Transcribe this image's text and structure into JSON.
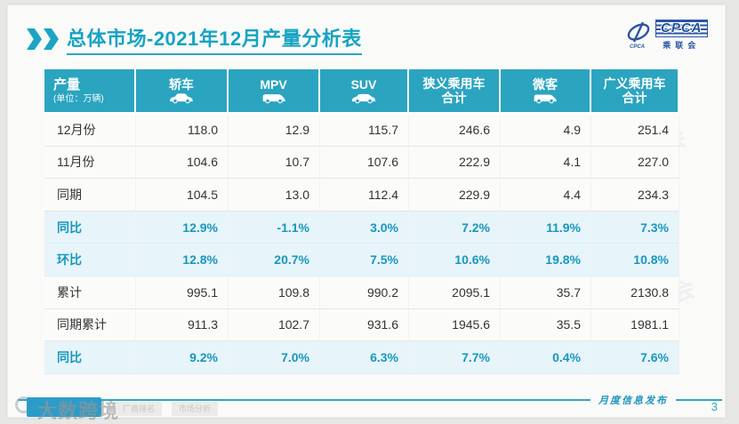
{
  "title": {
    "text": "总体市场-2021年12月产量分析表"
  },
  "logo": {
    "abbr": "CPCA",
    "cn": "乘联会"
  },
  "chart_data": {
    "type": "table",
    "title": "总体市场-2021年12月产量分析表",
    "corner_label": "产量",
    "unit_note": "(单位：万辆)",
    "columns": [
      "轿车",
      "MPV",
      "SUV",
      "狭义乘用车\n合计",
      "微客",
      "广义乘用车\n合计"
    ],
    "column_icons": [
      "sedan-icon",
      "mpv-icon",
      "suv-icon",
      null,
      "van-icon",
      null
    ],
    "rows": [
      {
        "label": "12月份",
        "highlight": false,
        "values": [
          "118.0",
          "12.9",
          "115.7",
          "246.6",
          "4.9",
          "251.4"
        ]
      },
      {
        "label": "11月份",
        "highlight": false,
        "values": [
          "104.6",
          "10.7",
          "107.6",
          "222.9",
          "4.1",
          "227.0"
        ]
      },
      {
        "label": "同期",
        "highlight": false,
        "values": [
          "104.5",
          "13.0",
          "112.4",
          "229.9",
          "4.4",
          "234.3"
        ]
      },
      {
        "label": "同比",
        "highlight": true,
        "values": [
          "12.9%",
          "-1.1%",
          "3.0%",
          "7.2%",
          "11.9%",
          "7.3%"
        ]
      },
      {
        "label": "环比",
        "highlight": true,
        "values": [
          "12.8%",
          "20.7%",
          "7.5%",
          "10.6%",
          "19.8%",
          "10.8%"
        ]
      },
      {
        "label": "累计",
        "highlight": false,
        "values": [
          "995.1",
          "109.8",
          "990.2",
          "2095.1",
          "35.7",
          "2130.8"
        ]
      },
      {
        "label": "同期累计",
        "highlight": false,
        "values": [
          "911.3",
          "102.7",
          "931.6",
          "1945.6",
          "35.5",
          "1981.1"
        ]
      },
      {
        "label": "同比",
        "highlight": true,
        "values": [
          "9.2%",
          "7.0%",
          "6.3%",
          "7.7%",
          "0.4%",
          "7.6%"
        ]
      }
    ]
  },
  "footer": {
    "label": "月度信息发布",
    "page": "3"
  },
  "watermark": {
    "brand": "大数跨境",
    "ghost": "CPCA 乘联会",
    "tabs": [
      "厂商排名",
      "市场分析"
    ]
  },
  "colors": {
    "header_teal": "#2ba4c0",
    "title_teal": "#17a3c4",
    "highlight_bg": "#e7f4fa",
    "highlight_text": "#1898bc",
    "logo_blue": "#1d4f9e",
    "footer_line": "#2fa7c3"
  }
}
